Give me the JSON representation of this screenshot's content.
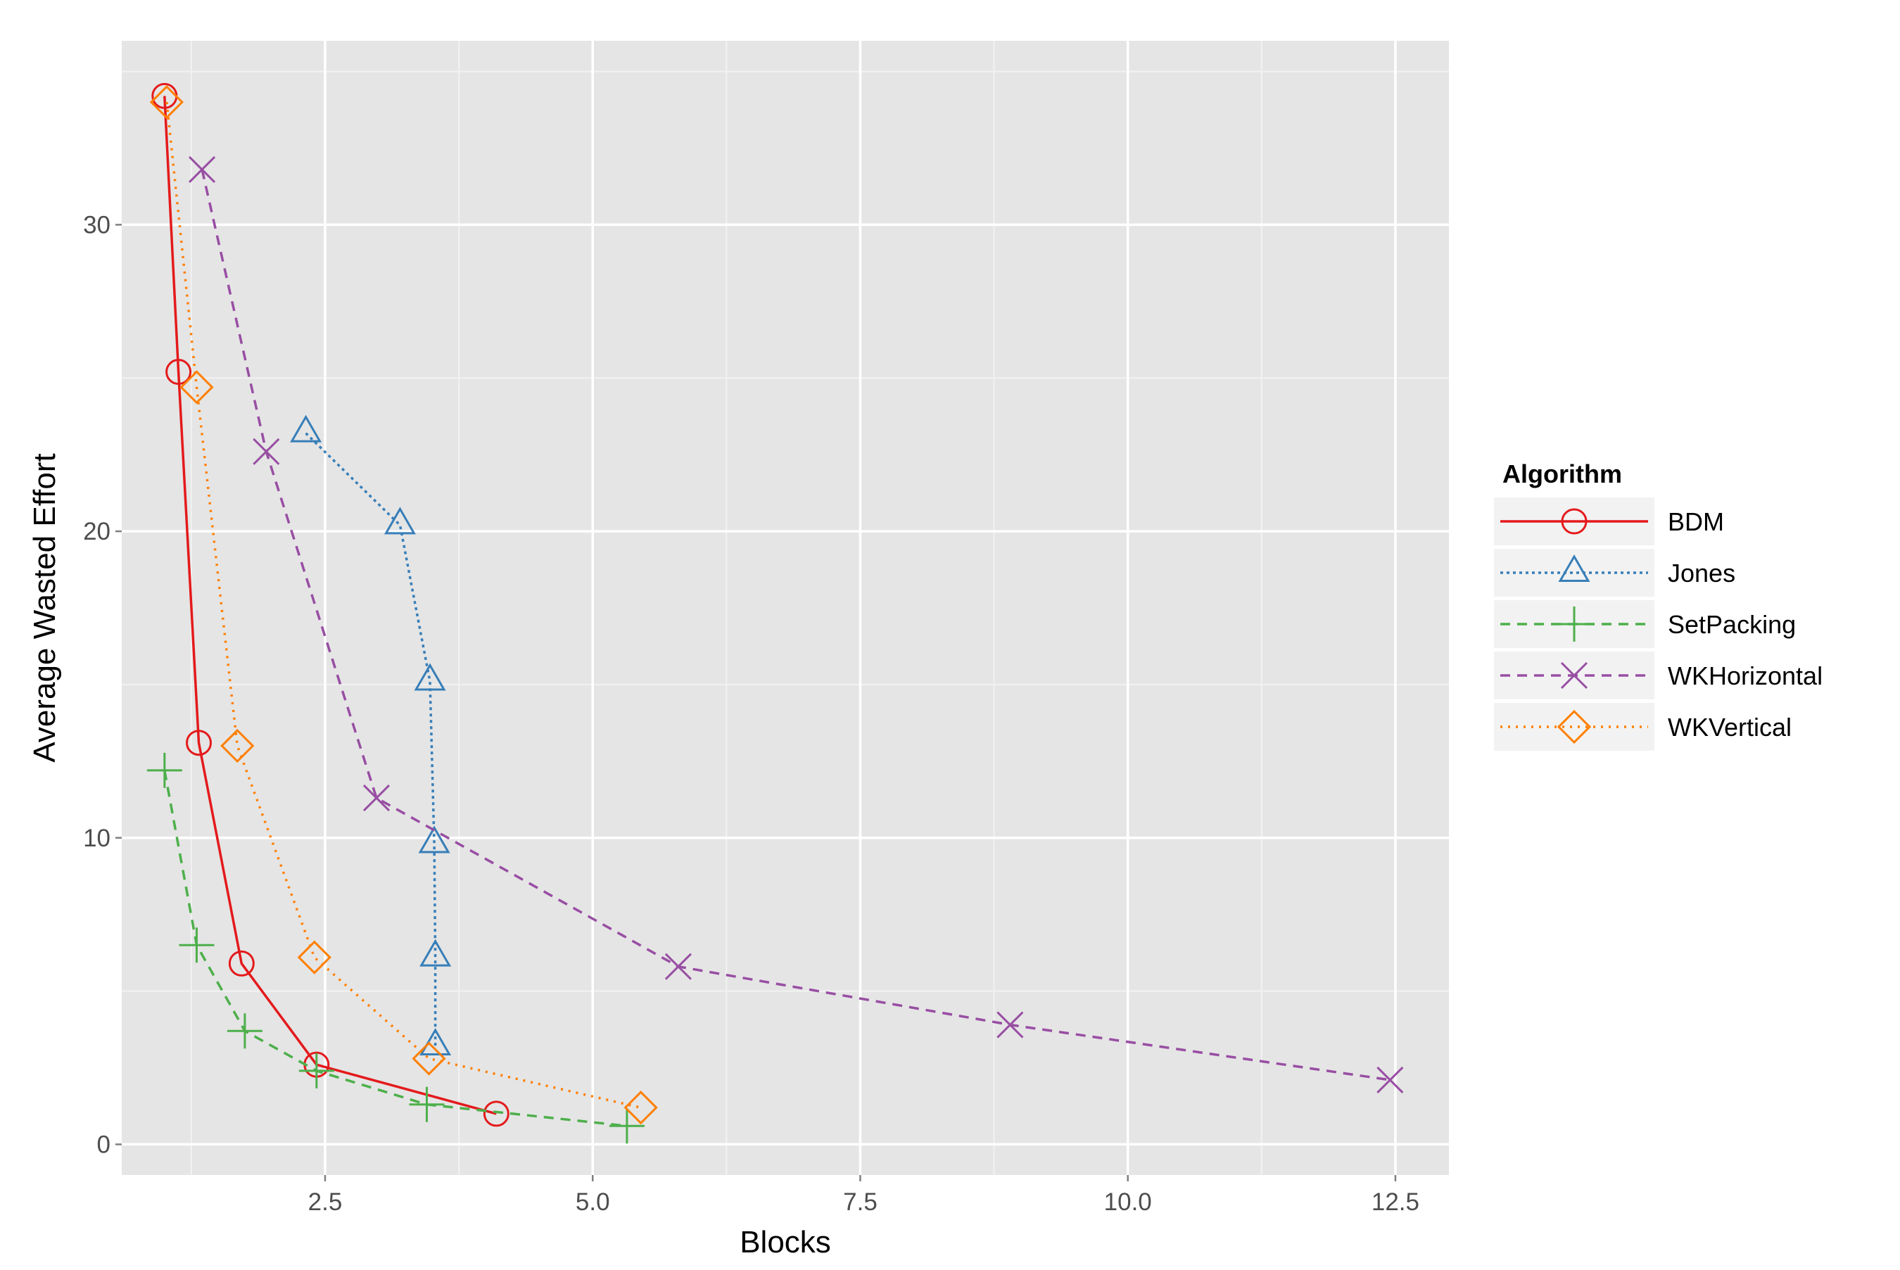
{
  "chart_data": {
    "type": "line",
    "title": "",
    "xlabel": "Blocks",
    "ylabel": "Average Wasted Effort",
    "xlim": [
      0.6,
      13.0
    ],
    "ylim": [
      -1.0,
      36.0
    ],
    "x_ticks": [
      2.5,
      5.0,
      7.5,
      10.0,
      12.5
    ],
    "x_tick_labels": [
      "2.5",
      "5.0",
      "7.5",
      "10.0",
      "12.5"
    ],
    "y_ticks": [
      0,
      10,
      20,
      30
    ],
    "y_tick_labels": [
      "0",
      "10",
      "20",
      "30"
    ],
    "grid": true,
    "background": "#e5e5e5",
    "legend": {
      "title": "Algorithm",
      "placement": "right"
    },
    "series": [
      {
        "name": "BDM",
        "color": "#e41a1c",
        "line": "solid",
        "marker": "circle",
        "x": [
          1.0,
          1.13,
          1.32,
          1.72,
          2.42,
          4.1
        ],
        "y": [
          34.2,
          25.2,
          13.1,
          5.9,
          2.6,
          1.0
        ]
      },
      {
        "name": "Jones",
        "color": "#377eb8",
        "line": "dotted-dense",
        "marker": "triangle",
        "x": [
          2.32,
          3.2,
          3.48,
          3.52,
          3.53,
          3.53
        ],
        "y": [
          23.2,
          20.2,
          15.1,
          9.8,
          6.1,
          3.2
        ]
      },
      {
        "name": "SetPacking",
        "color": "#4daf4a",
        "line": "dashed",
        "marker": "plus",
        "x": [
          1.0,
          1.3,
          1.75,
          2.42,
          3.45,
          5.32
        ],
        "y": [
          12.2,
          6.5,
          3.7,
          2.4,
          1.3,
          0.6
        ]
      },
      {
        "name": "WKHorizontal",
        "color": "#984ea3",
        "line": "dashed",
        "marker": "x",
        "x": [
          1.35,
          1.95,
          2.98,
          5.8,
          8.9,
          12.45
        ],
        "y": [
          31.8,
          22.6,
          11.3,
          5.8,
          3.9,
          2.1
        ]
      },
      {
        "name": "WKVertical",
        "color": "#ff7f00",
        "line": "dotted",
        "marker": "diamond",
        "x": [
          1.02,
          1.3,
          1.68,
          2.4,
          3.47,
          5.45
        ],
        "y": [
          34.0,
          24.7,
          13.0,
          6.1,
          2.8,
          1.2
        ]
      }
    ]
  }
}
